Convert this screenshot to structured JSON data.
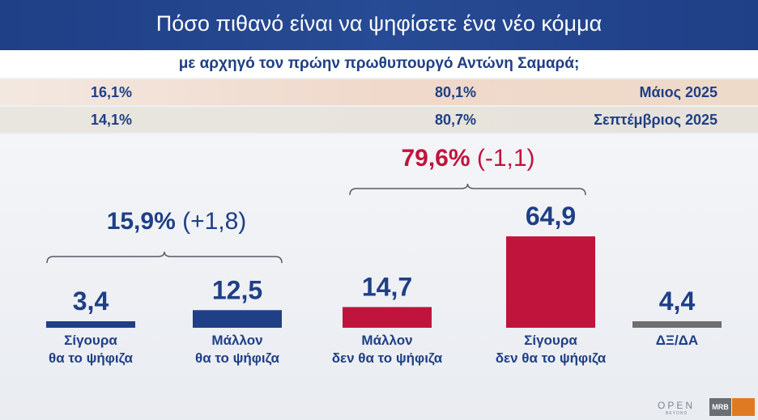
{
  "header": {
    "title": "Πόσο πιθανό είναι να ψηφίσετε ένα νέο κόμμα",
    "subtitle": "με αρχηγό τον πρώην πρωθυπουργό Αντώνη Σαμαρά;"
  },
  "comparison_rows": [
    {
      "yes": "16,1%",
      "no": "80,1%",
      "period": "Μάιος 2025"
    },
    {
      "yes": "14,1%",
      "no": "80,7%",
      "period": "Σεπτέμβριος 2025"
    }
  ],
  "groups": [
    {
      "total": "15,9%",
      "change": "(+1,8)",
      "color": "#1f3f86"
    },
    {
      "total": "79,6%",
      "change": "(-1,1)",
      "color": "#c0143c"
    }
  ],
  "colors": {
    "blue": "#1f3f86",
    "red": "#c0143c",
    "gray": "#6e6e6e"
  },
  "chart_data": {
    "type": "bar",
    "categories": [
      "Σίγουρα θα το ψήφιζα",
      "Μάλλον θα το ψήφιζα",
      "Μάλλον δεν θα το ψήφιζα",
      "Σίγουρα δεν θα το ψήφιζα",
      "ΔΞ/ΔΑ"
    ],
    "values": [
      3.4,
      12.5,
      14.7,
      64.9,
      4.4
    ],
    "value_labels": [
      "3,4",
      "12,5",
      "14,7",
      "64,9",
      "4,4"
    ],
    "label_lines": [
      [
        "Σίγουρα",
        "θα το ψήφιζα"
      ],
      [
        "Μάλλον",
        "θα το ψήφιζα"
      ],
      [
        "Μάλλον",
        "δεν θα το ψήφιζα"
      ],
      [
        "Σίγουρα",
        "δεν θα το ψήφιζα"
      ],
      [
        "ΔΞ/ΔΑ"
      ]
    ],
    "bar_colors": [
      "#1f3f86",
      "#1f3f86",
      "#c0143c",
      "#c0143c",
      "#6e6e6e"
    ],
    "title": "",
    "xlabel": "",
    "ylabel": ""
  },
  "branding": {
    "logo_top": "OPEN",
    "logo_bottom": "BEYOND",
    "badge": "MRB"
  }
}
